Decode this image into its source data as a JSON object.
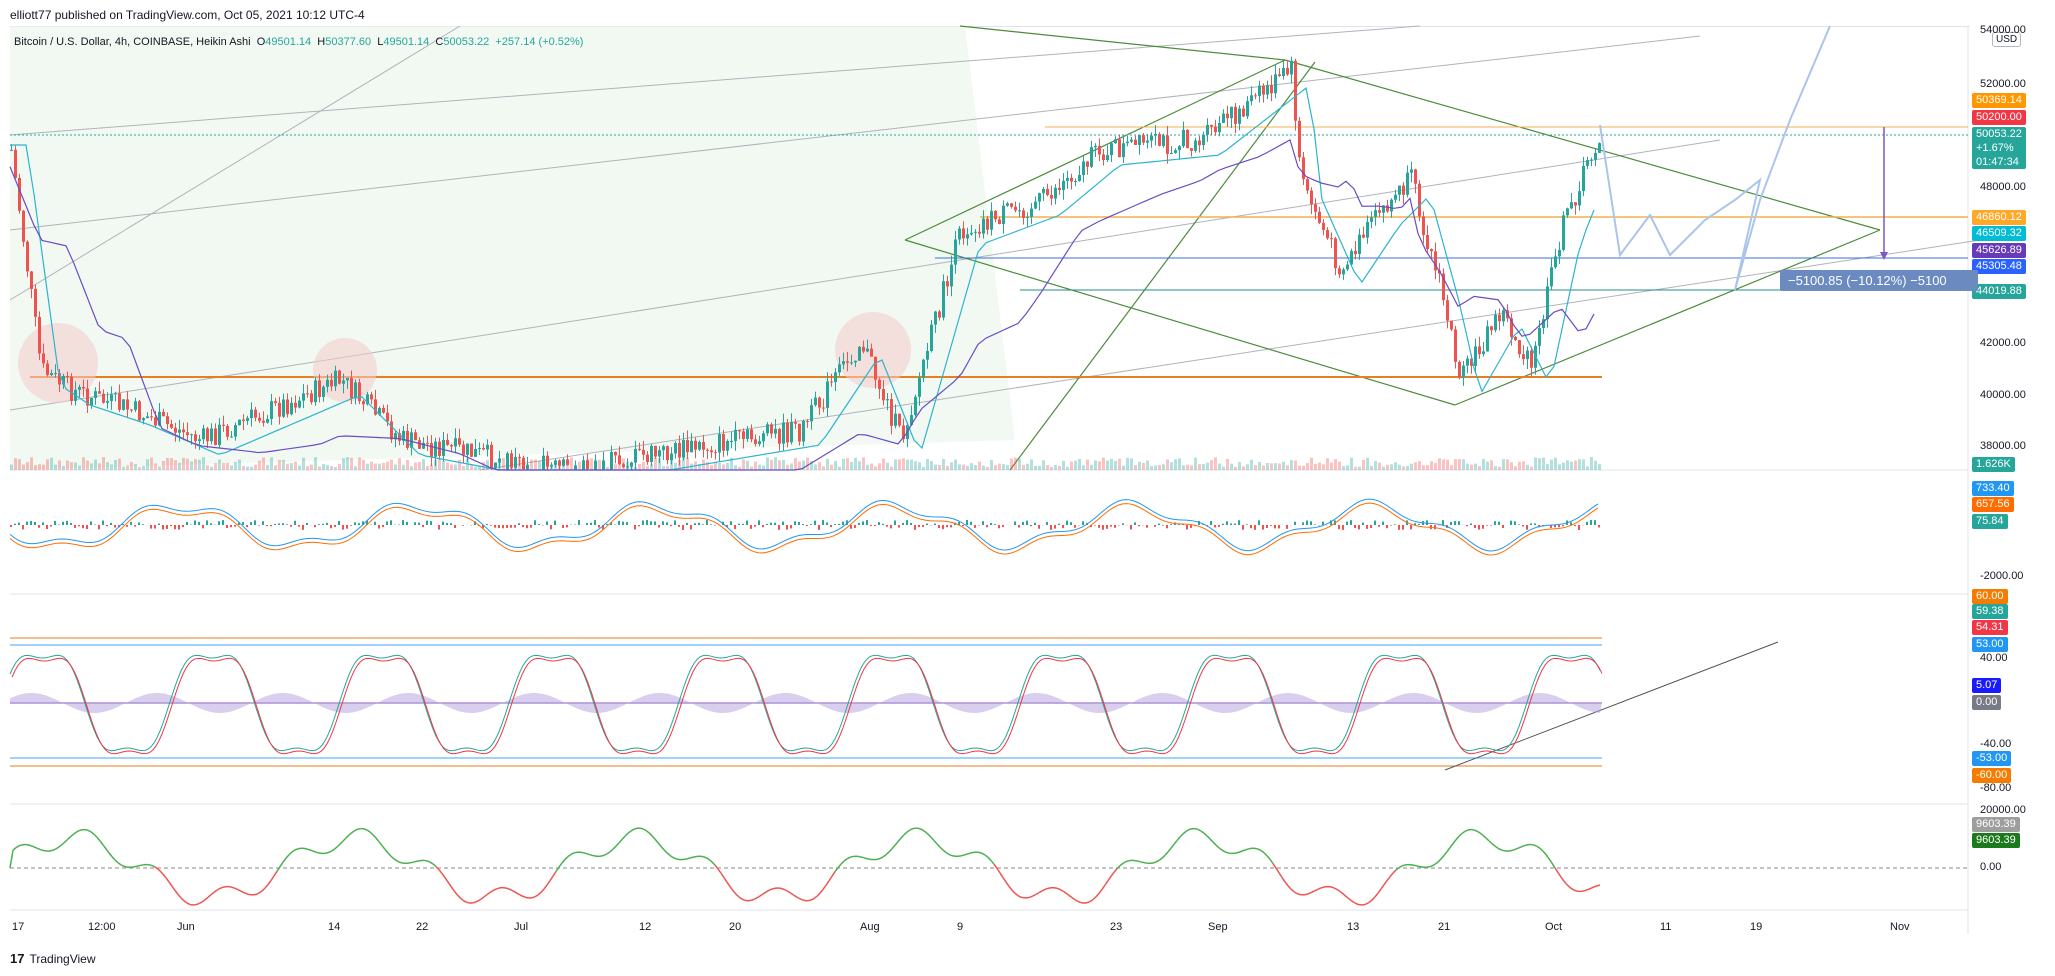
{
  "header": {
    "published": "elliott77 published on TradingView.com, Oct 05, 2021 10:12 UTC-4"
  },
  "symbol": {
    "title": "Bitcoin / U.S. Dollar, 4h, COINBASE, Heikin Ashi",
    "open_label": "O",
    "open": "49501.14",
    "high_label": "H",
    "high": "50377.60",
    "low_label": "L",
    "low": "49501.14",
    "close_label": "C",
    "close": "50053.22",
    "change": "+257.14 (+0.52%)"
  },
  "currency": "USD",
  "price_axis": {
    "labels": [
      "54000.00",
      "52000.00",
      "48000.00",
      "42000.00",
      "40000.00",
      "38000.00"
    ],
    "tags": [
      {
        "text": "50369.14",
        "color": "#ff9800"
      },
      {
        "text": "50200.00",
        "color": "#f23645"
      },
      {
        "text": "50053.22",
        "color": "#26a69a"
      },
      {
        "text": "46860.12",
        "color": "#ffa726"
      },
      {
        "text": "46509.32",
        "color": "#00bcd4"
      },
      {
        "text": "45626.89",
        "color": "#673ab7"
      },
      {
        "text": "45305.48",
        "color": "#2962ff"
      },
      {
        "text": "44019.88",
        "color": "#26a69a"
      },
      {
        "text": "1.626K",
        "color": "#26a69a"
      }
    ],
    "last_price": {
      "price": "50053.22",
      "change": "+1.67%",
      "countdown": "01:47:34"
    }
  },
  "macd_pane": {
    "labels": [
      "-2000.00"
    ],
    "tags": [
      {
        "text": "733.40",
        "color": "#2196f3"
      },
      {
        "text": "657.56",
        "color": "#ff6d00"
      },
      {
        "text": "75.84",
        "color": "#26a69a"
      }
    ]
  },
  "stoch_pane": {
    "labels": [
      "40.00",
      "-40.00",
      "-80.00"
    ],
    "tags": [
      {
        "text": "60.00",
        "color": "#f57c00"
      },
      {
        "text": "59.38",
        "color": "#26a69a"
      },
      {
        "text": "54.31",
        "color": "#f23645"
      },
      {
        "text": "53.00",
        "color": "#2196f3"
      },
      {
        "text": "5.07",
        "color": "#1a1aff"
      },
      {
        "text": "0.00",
        "color": "#787b86"
      },
      {
        "text": "-53.00",
        "color": "#2196f3"
      },
      {
        "text": "-60.00",
        "color": "#f57c00"
      }
    ]
  },
  "flow_pane": {
    "labels": [
      "20000.00",
      "0.00"
    ],
    "tags": [
      {
        "text": "9603.39",
        "color": "#9e9e9e"
      },
      {
        "text": "9603.39",
        "color": "#1b7a1b"
      }
    ]
  },
  "time_axis": [
    "17",
    "12:00",
    "Jun",
    "14",
    "22",
    "Jul",
    "12",
    "20",
    "Aug",
    "9",
    "23",
    "Sep",
    "13",
    "21",
    "Oct",
    "11",
    "19",
    "Nov"
  ],
  "measure_label": "−5100.85 (−10.12%) −5100",
  "footer": {
    "brand": "TradingView"
  },
  "colors": {
    "bull": "#26a69a",
    "bear": "#ef5350",
    "support": "#e67e22",
    "channel": "#4caf50"
  }
}
